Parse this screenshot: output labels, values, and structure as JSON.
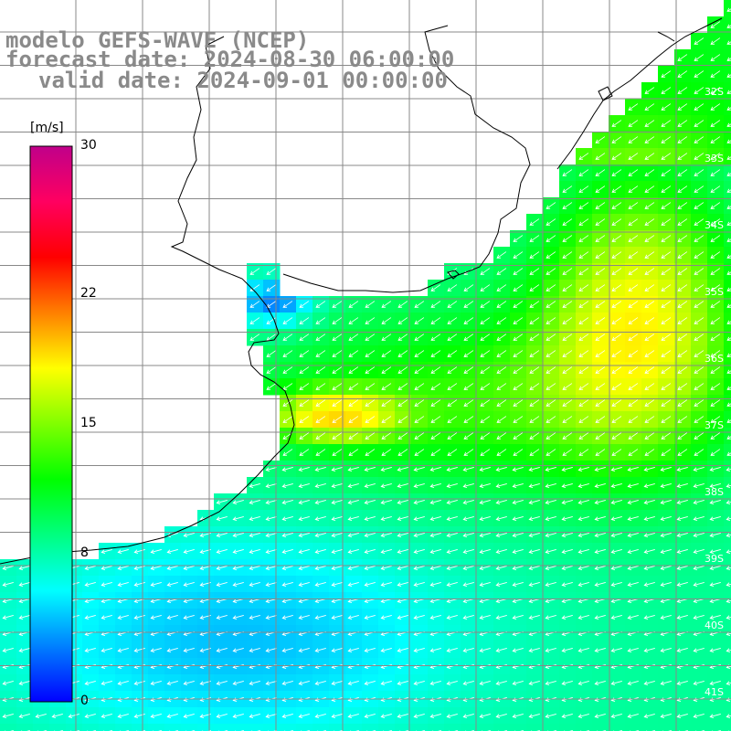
{
  "title": {
    "line1": "modelo GEFS-WAVE (NCEP)",
    "line2": "forecast date: 2024-08-30 06:00:00",
    "line3": "valid date: 2024-09-01 00:00:00"
  },
  "colorbar": {
    "unit": "[m/s]",
    "ticks": [
      "30",
      "22",
      "15",
      "8",
      "0"
    ],
    "colors": [
      "#0000ff",
      "#0080ff",
      "#00ffff",
      "#00ff80",
      "#00ff00",
      "#80ff00",
      "#ffff00",
      "#ff8000",
      "#ff0000",
      "#ff0060",
      "#c0008a"
    ]
  },
  "lat_labels": [
    "32S",
    "33S",
    "34S",
    "35S",
    "36S",
    "37S",
    "38S",
    "39S",
    "40S",
    "41S"
  ],
  "colors": {
    "grid": "#888888",
    "coast": "#000000",
    "arrows": "#ffffff",
    "title": "#8a8a8a"
  }
}
